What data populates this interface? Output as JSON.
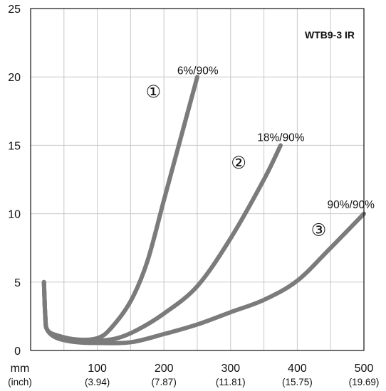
{
  "chart_data": {
    "type": "line",
    "title": "WTB9-3 IR",
    "xlabel": "mm",
    "xlabel_sub": "(inch)",
    "ylabel": "",
    "xlim": [
      0,
      500
    ],
    "ylim": [
      0,
      25
    ],
    "grid": true,
    "x_ticks": [
      {
        "value": 100,
        "label": "100",
        "sub": "(3.94)"
      },
      {
        "value": 200,
        "label": "200",
        "sub": "(7.87)"
      },
      {
        "value": 300,
        "label": "300",
        "sub": "(11.81)"
      },
      {
        "value": 400,
        "label": "400",
        "sub": "(15.75)"
      },
      {
        "value": 500,
        "label": "500",
        "sub": "(19.69)"
      }
    ],
    "y_ticks": [
      0,
      5,
      10,
      15,
      20,
      25
    ],
    "series": [
      {
        "name": "6%/90%",
        "marker": "①",
        "points": [
          [
            20,
            5
          ],
          [
            22,
            2.5
          ],
          [
            25,
            1.5
          ],
          [
            40,
            1.1
          ],
          [
            70,
            0.8
          ],
          [
            100,
            0.9
          ],
          [
            120,
            1.6
          ],
          [
            150,
            3.6
          ],
          [
            175,
            6.5
          ],
          [
            200,
            11.0
          ],
          [
            225,
            15.5
          ],
          [
            250,
            20.0
          ]
        ]
      },
      {
        "name": "18%/90%",
        "marker": "②",
        "points": [
          [
            20,
            5
          ],
          [
            22,
            2.5
          ],
          [
            25,
            1.5
          ],
          [
            40,
            1.0
          ],
          [
            70,
            0.7
          ],
          [
            100,
            0.7
          ],
          [
            130,
            0.9
          ],
          [
            160,
            1.5
          ],
          [
            200,
            2.7
          ],
          [
            250,
            4.7
          ],
          [
            300,
            8.2
          ],
          [
            350,
            12.5
          ],
          [
            375,
            15.0
          ]
        ]
      },
      {
        "name": "90%/90%",
        "marker": "③",
        "points": [
          [
            20,
            5
          ],
          [
            22,
            2.5
          ],
          [
            25,
            1.5
          ],
          [
            40,
            0.9
          ],
          [
            70,
            0.6
          ],
          [
            100,
            0.55
          ],
          [
            150,
            0.6
          ],
          [
            200,
            1.2
          ],
          [
            250,
            1.9
          ],
          [
            300,
            2.8
          ],
          [
            350,
            3.7
          ],
          [
            400,
            5.1
          ],
          [
            450,
            7.5
          ],
          [
            500,
            10.0
          ]
        ]
      }
    ],
    "annotations": [
      {
        "series": 0,
        "x": 220,
        "y": 20.2
      },
      {
        "series": 1,
        "x": 340,
        "y": 15.3
      },
      {
        "series": 2,
        "x": 445,
        "y": 10.4
      }
    ],
    "markers": [
      {
        "series": 0,
        "x": 184,
        "y": 18.5
      },
      {
        "series": 1,
        "x": 312,
        "y": 13.3
      },
      {
        "series": 2,
        "x": 432,
        "y": 8.4
      }
    ]
  }
}
